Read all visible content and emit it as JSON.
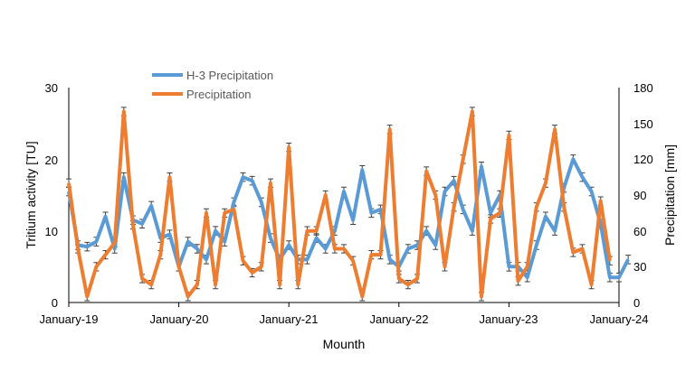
{
  "colors": {
    "tritium": "#5B9BD5",
    "precipitation": "#ED7D31",
    "axis": "#000000",
    "errorbar": "#404040"
  },
  "chart_data": {
    "type": "line",
    "title": "",
    "xlabel": "Mounth",
    "ylabel_left": "Tritium activity [TU]",
    "ylabel_right": "Precipitation [mm]",
    "ylim_left": [
      0,
      30
    ],
    "ylim_right": [
      0,
      180
    ],
    "yticks_left": [
      0,
      10,
      20,
      30
    ],
    "yticks_right": [
      0,
      30,
      60,
      90,
      120,
      150,
      180
    ],
    "x_tick_labels": [
      "January-19",
      "January-20",
      "January-21",
      "January-22",
      "January-23",
      "January-24"
    ],
    "x_start_month": 0,
    "x_end_month": 60,
    "grid": false,
    "legend_position": "top-left",
    "series": [
      {
        "name": "H-3 Precipitation",
        "axis": "left",
        "month_offset": 0,
        "values": [
          15.5,
          8.0,
          7.8,
          8.5,
          12.0,
          7.5,
          17.5,
          11.5,
          11.0,
          13.5,
          9.0,
          9.5,
          5.0,
          8.5,
          7.5,
          6.0,
          10.0,
          8.5,
          14.0,
          17.5,
          17.0,
          14.0,
          9.0,
          6.0,
          8.0,
          6.0,
          6.0,
          9.0,
          7.5,
          10.0,
          15.5,
          11.5,
          18.5,
          12.5,
          13.0,
          6.0,
          5.0,
          7.5,
          8.0,
          10.0,
          8.0,
          15.5,
          17.0,
          13.0,
          10.0,
          19.0,
          12.5,
          15.0,
          5.0,
          5.0,
          3.5,
          8.0,
          12.0,
          10.0,
          16.0,
          20.0,
          17.5,
          15.5,
          11.0,
          3.5,
          3.5,
          6.0
        ]
      },
      {
        "name": "Precipitation",
        "axis": "right",
        "month_offset": 0,
        "values": [
          100,
          45,
          5,
          30,
          40,
          50,
          160,
          65,
          20,
          15,
          40,
          105,
          30,
          5,
          15,
          75,
          15,
          75,
          78,
          35,
          25,
          30,
          100,
          15,
          130,
          15,
          60,
          60,
          90,
          45,
          45,
          35,
          5,
          40,
          40,
          145,
          20,
          15,
          20,
          110,
          90,
          30,
          80,
          120,
          160,
          5,
          70,
          75,
          140,
          18,
          30,
          80,
          100,
          145,
          80,
          42,
          45,
          15,
          85,
          35
        ]
      }
    ]
  }
}
